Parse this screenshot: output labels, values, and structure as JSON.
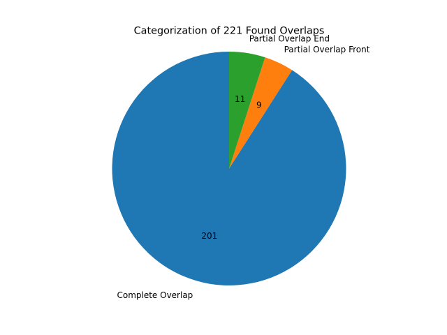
{
  "chart_data": {
    "type": "pie",
    "title": "Categorization of 221 Found Overlaps",
    "labels": [
      "Complete Overlap",
      "Partial Overlap Front",
      "Partial Overlap End"
    ],
    "values": [
      201,
      9,
      11
    ],
    "value_labels": [
      "201",
      "9",
      "11"
    ],
    "colors": [
      "#1f77b4",
      "#ff7f0e",
      "#2ca02c"
    ],
    "start_angle_deg": 90,
    "direction": "counterclockwise",
    "legend": "none"
  }
}
